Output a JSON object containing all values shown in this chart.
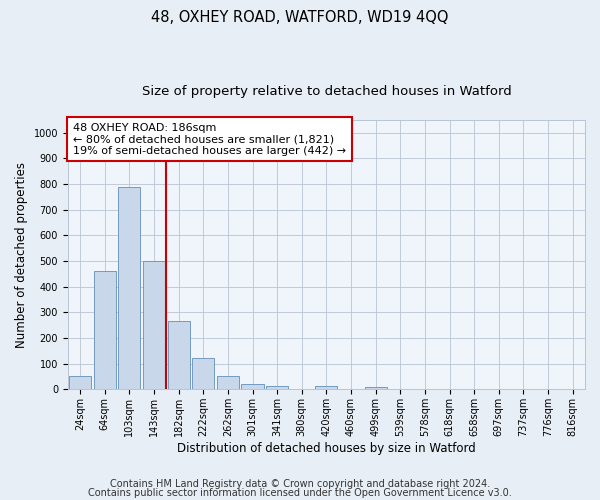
{
  "title": "48, OXHEY ROAD, WATFORD, WD19 4QQ",
  "subtitle": "Size of property relative to detached houses in Watford",
  "xlabel": "Distribution of detached houses by size in Watford",
  "ylabel": "Number of detached properties",
  "categories": [
    "24sqm",
    "64sqm",
    "103sqm",
    "143sqm",
    "182sqm",
    "222sqm",
    "262sqm",
    "301sqm",
    "341sqm",
    "380sqm",
    "420sqm",
    "460sqm",
    "499sqm",
    "539sqm",
    "578sqm",
    "618sqm",
    "658sqm",
    "697sqm",
    "737sqm",
    "776sqm",
    "816sqm"
  ],
  "values": [
    50,
    460,
    790,
    500,
    268,
    122,
    52,
    22,
    12,
    0,
    12,
    0,
    10,
    0,
    0,
    0,
    0,
    0,
    0,
    0,
    0
  ],
  "bar_color": "#c8d8ea",
  "bar_edge_color": "#6090b8",
  "vline_x": 4,
  "vline_color": "#cc0000",
  "annotation_line1": "48 OXHEY ROAD: 186sqm",
  "annotation_line2": "← 80% of detached houses are smaller (1,821)",
  "annotation_line3": "19% of semi-detached houses are larger (442) →",
  "annotation_box_color": "#ffffff",
  "annotation_box_edge_color": "#cc0000",
  "ylim": [
    0,
    1050
  ],
  "yticks": [
    0,
    100,
    200,
    300,
    400,
    500,
    600,
    700,
    800,
    900,
    1000
  ],
  "footer1": "Contains HM Land Registry data © Crown copyright and database right 2024.",
  "footer2": "Contains public sector information licensed under the Open Government Licence v3.0.",
  "bg_color": "#e8eef6",
  "plot_bg_color": "#f0f4fb",
  "grid_color": "#b8c4d4",
  "title_fontsize": 10.5,
  "subtitle_fontsize": 9.5,
  "axis_label_fontsize": 8.5,
  "tick_fontsize": 7,
  "footer_fontsize": 7,
  "annotation_fontsize": 8
}
